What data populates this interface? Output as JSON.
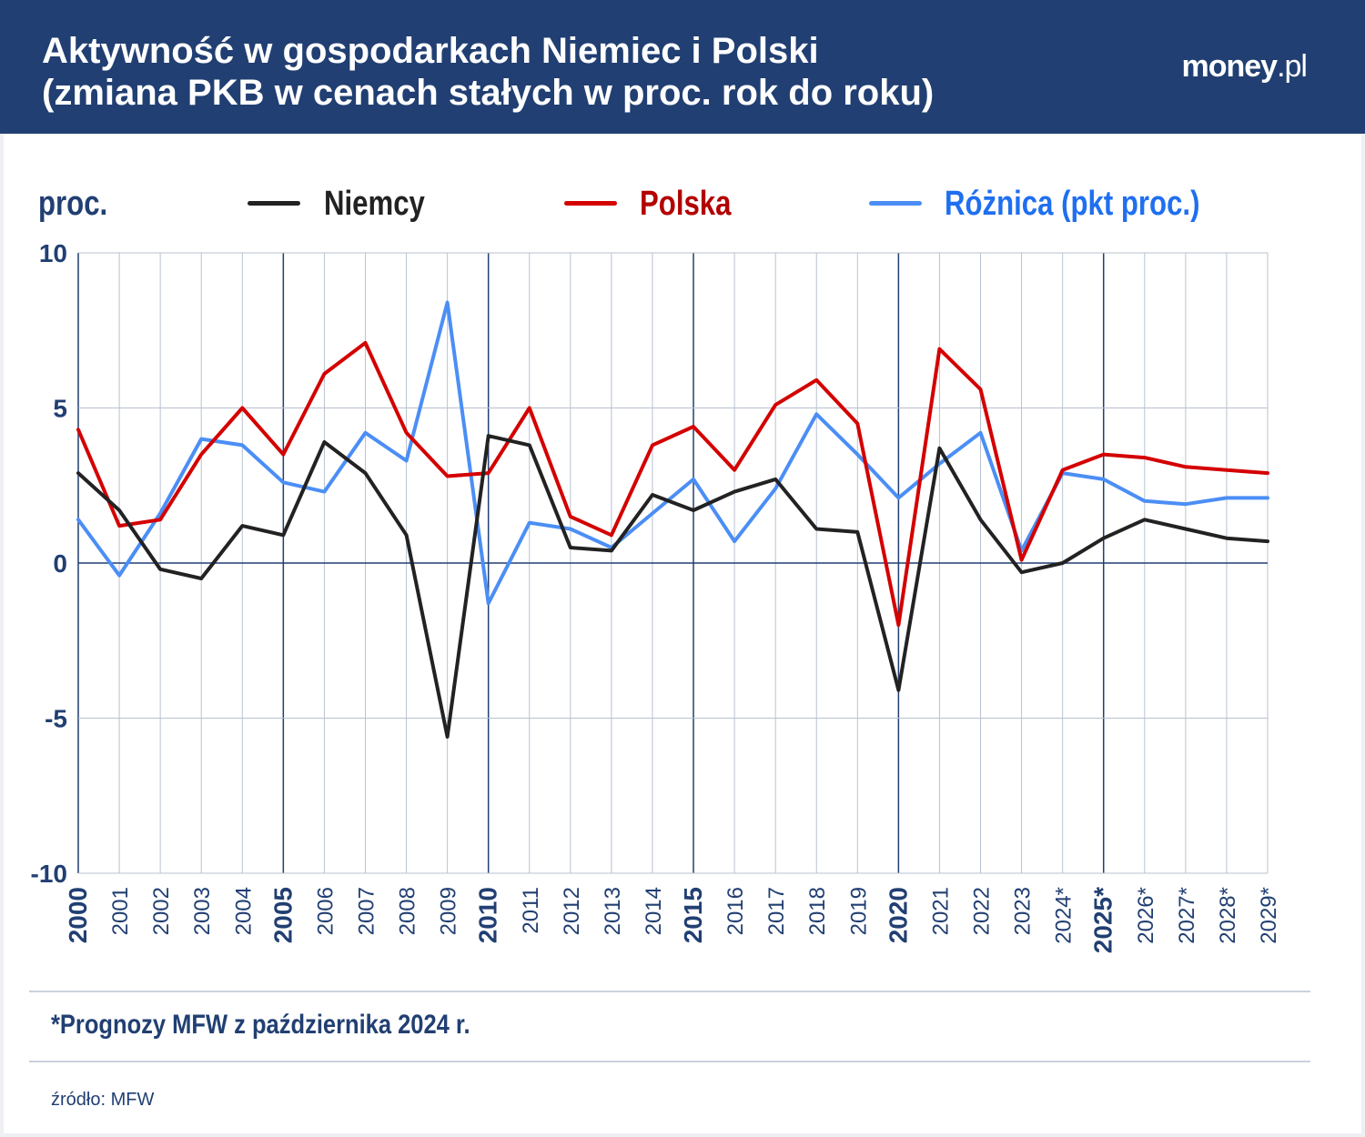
{
  "header": {
    "title_line1": "Aktywność w gospodarkach Niemiec i Polski",
    "title_line2": "(zmiana PKB w cenach stałych w proc. rok do roku)",
    "logo_main": "money",
    "logo_suffix": ".pl"
  },
  "footer": {
    "note": "*Prognozy MFW z października 2024 r.",
    "source": "źródło: MFW"
  },
  "colors": {
    "header": "#213f72",
    "Niemcy": "#222222",
    "Polska": "#d40000",
    "Różnica": "#4b8ef5",
    "axis": "#213f72"
  },
  "chart_data": {
    "type": "line",
    "ylabel": "proc.",
    "ylim": [
      -10,
      10
    ],
    "yticks": [
      "10",
      "5",
      "0",
      "-5",
      "-10"
    ],
    "grid": true,
    "legend_placement": "top",
    "x": [
      "2000",
      "2001",
      "2002",
      "2003",
      "2004",
      "2005",
      "2006",
      "2007",
      "2008",
      "2009",
      "2010",
      "2011",
      "2012",
      "2013",
      "2014",
      "2015",
      "2016",
      "2017",
      "2018",
      "2019",
      "2020",
      "2021",
      "2022",
      "2023",
      "2024*",
      "2025*",
      "2026*",
      "2027*",
      "2028*",
      "2029*"
    ],
    "series": [
      {
        "name": "Niemcy",
        "values": [
          2.9,
          1.7,
          -0.2,
          -0.5,
          1.2,
          0.9,
          3.9,
          2.9,
          0.9,
          -5.6,
          4.1,
          3.8,
          0.5,
          0.4,
          2.2,
          1.7,
          2.3,
          2.7,
          1.1,
          1.0,
          -4.1,
          3.7,
          1.4,
          -0.3,
          0.0,
          0.8,
          1.4,
          1.1,
          0.8,
          0.7
        ]
      },
      {
        "name": "Polska",
        "values": [
          4.3,
          1.2,
          1.4,
          3.5,
          5.0,
          3.5,
          6.1,
          7.1,
          4.2,
          2.8,
          2.9,
          5.0,
          1.5,
          0.9,
          3.8,
          4.4,
          3.0,
          5.1,
          5.9,
          4.5,
          -2.0,
          6.9,
          5.6,
          0.1,
          3.0,
          3.5,
          3.4,
          3.1,
          3.0,
          2.9
        ]
      },
      {
        "name": "Różnica (pkt proc.)",
        "values": [
          1.4,
          -0.4,
          1.6,
          4.0,
          3.8,
          2.6,
          2.3,
          4.2,
          3.3,
          8.4,
          -1.3,
          1.3,
          1.1,
          0.5,
          1.6,
          2.7,
          0.7,
          2.4,
          4.8,
          3.5,
          2.1,
          3.2,
          4.2,
          0.4,
          2.9,
          2.7,
          2.0,
          1.9,
          2.1,
          2.1
        ]
      }
    ]
  }
}
